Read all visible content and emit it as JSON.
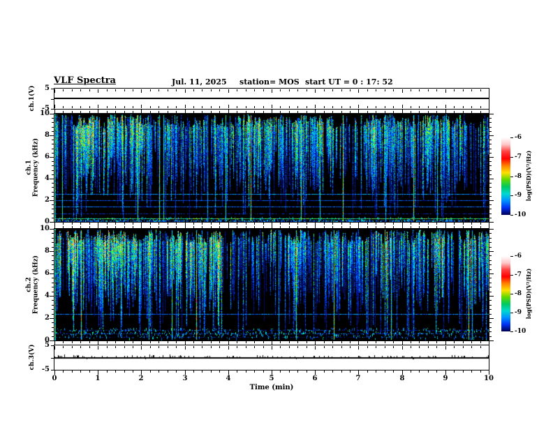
{
  "header": {
    "title": "VLF Spectra",
    "date": "Jul. 11, 2025",
    "station": "station= MOS",
    "start_ut": "start UT =  0 : 17: 52"
  },
  "left_labels": {
    "ch1v": "ch.1(V)",
    "spec1_line1": "ch.1",
    "spec1_line2": "Frequency (kHz)",
    "spec2_line1": "ch.2",
    "spec2_line2": "Frequency (kHz)",
    "ch3v": "ch.3(V)"
  },
  "axes": {
    "time": {
      "label": "Time (min)",
      "tick_labels": [
        "0",
        "1",
        "2",
        "3",
        "4",
        "5",
        "6",
        "7",
        "8",
        "9",
        "10"
      ],
      "minor_per_major": 5
    },
    "freq": {
      "tick_labels": [
        "0",
        "2",
        "4",
        "6",
        "8",
        "10"
      ],
      "minor_per_major": 5
    },
    "volt_ticks": [
      "5",
      "-5"
    ]
  },
  "colorbar": {
    "label": "log(PSD)(V²/Hz)",
    "tick_labels": [
      "-6",
      "-7",
      "-8",
      "-9",
      "-10"
    ],
    "gradient_top_to_bottom": [
      "#ffffff",
      "#ffc8c8",
      "#ff4040",
      "#ff0000",
      "#ff8000",
      "#ffe000",
      "#60d800",
      "#00c860",
      "#00d8d0",
      "#0090ff",
      "#0030f0",
      "#000050"
    ]
  },
  "chart_data": {
    "type": "heatmap",
    "subtype": "vlf-spectrogram-quicklook",
    "title": "VLF Spectra",
    "date": "Jul. 11, 2025",
    "station": "MOS",
    "start_ut": "0 : 17: 52",
    "x_axis": {
      "label": "Time (min)",
      "min": 0,
      "max": 10,
      "major_tick": 1,
      "minor_tick": 0.2
    },
    "color_scale": {
      "label": "log(PSD)(V²/Hz)",
      "max": -6,
      "min": -10
    },
    "panels": [
      {
        "id": "ch1_voltage",
        "ylabel": "ch.1(V)",
        "ymin": -5,
        "ymax": 5,
        "trace": "flat line at 0 V for full 10 min"
      },
      {
        "id": "ch1_spectrogram",
        "ylabel": "ch.1 Frequency (kHz)",
        "ymin": 0,
        "ymax": 10,
        "broadband_activity": {
          "f_min": 3.5,
          "f_max": 9.9,
          "character": "dense impulsive vertical sferic streaks, mostly blue/cyan/green, occasional yellow-red cores, quiet black gap 0.5-3.5 kHz"
        },
        "narrowband_lines_khz": [
          2.55,
          2.0,
          1.45,
          0.8,
          0.35,
          0.12
        ],
        "render": {
          "seed": 1337,
          "density": 0.58,
          "verticals": 13,
          "hot": 0,
          "lines": [
            {
              "f": 2.55,
              "v": 0.4
            },
            {
              "f": 2.0,
              "v": 0.3
            },
            {
              "f": 1.45,
              "v": 0.34
            },
            {
              "f": 0.8,
              "v": 0.26,
              "speckle": 0.65
            },
            {
              "f": 0.35,
              "v": 0.62
            },
            {
              "f": 0.12,
              "v": 0.4,
              "speckle": 0.55,
              "thick": 2
            }
          ],
          "band": {
            "fmin": 0.02,
            "fmax": 0.45,
            "density": 0.5
          }
        }
      },
      {
        "id": "ch2_spectrogram",
        "ylabel": "ch.2 Frequency (kHz)",
        "ymin": 0,
        "ymax": 10,
        "broadband_activity": {
          "f_min": 3.0,
          "f_max": 9.9,
          "character": "denser streaks with bright green cores 5-9.5 kHz, speckled band 0.3-1.1 kHz, quiet gap 1.3-2.2 kHz"
        },
        "narrowband_lines_khz": [
          2.4,
          0.95,
          0.6,
          0.3
        ],
        "render": {
          "seed": 90210,
          "density": 0.66,
          "verticals": 10,
          "hot": 1,
          "lines": [
            {
              "f": 2.4,
              "v": 0.38
            },
            {
              "f": 0.95,
              "v": 0.24,
              "speckle": 0.45
            },
            {
              "f": 0.6,
              "v": 0.3,
              "speckle": 0.55
            },
            {
              "f": 0.3,
              "v": 0.22,
              "speckle": 0.35
            }
          ],
          "band": {
            "fmin": 0.25,
            "fmax": 1.15,
            "density": 0.8
          }
        }
      },
      {
        "id": "ch3_voltage",
        "ylabel": "ch.3(V)",
        "ymin": -5,
        "ymax": 5,
        "trace": "flat line at 0 V with small positive noise spikes",
        "render": {
          "seed": 777,
          "spike_density": 0.08
        }
      }
    ]
  }
}
